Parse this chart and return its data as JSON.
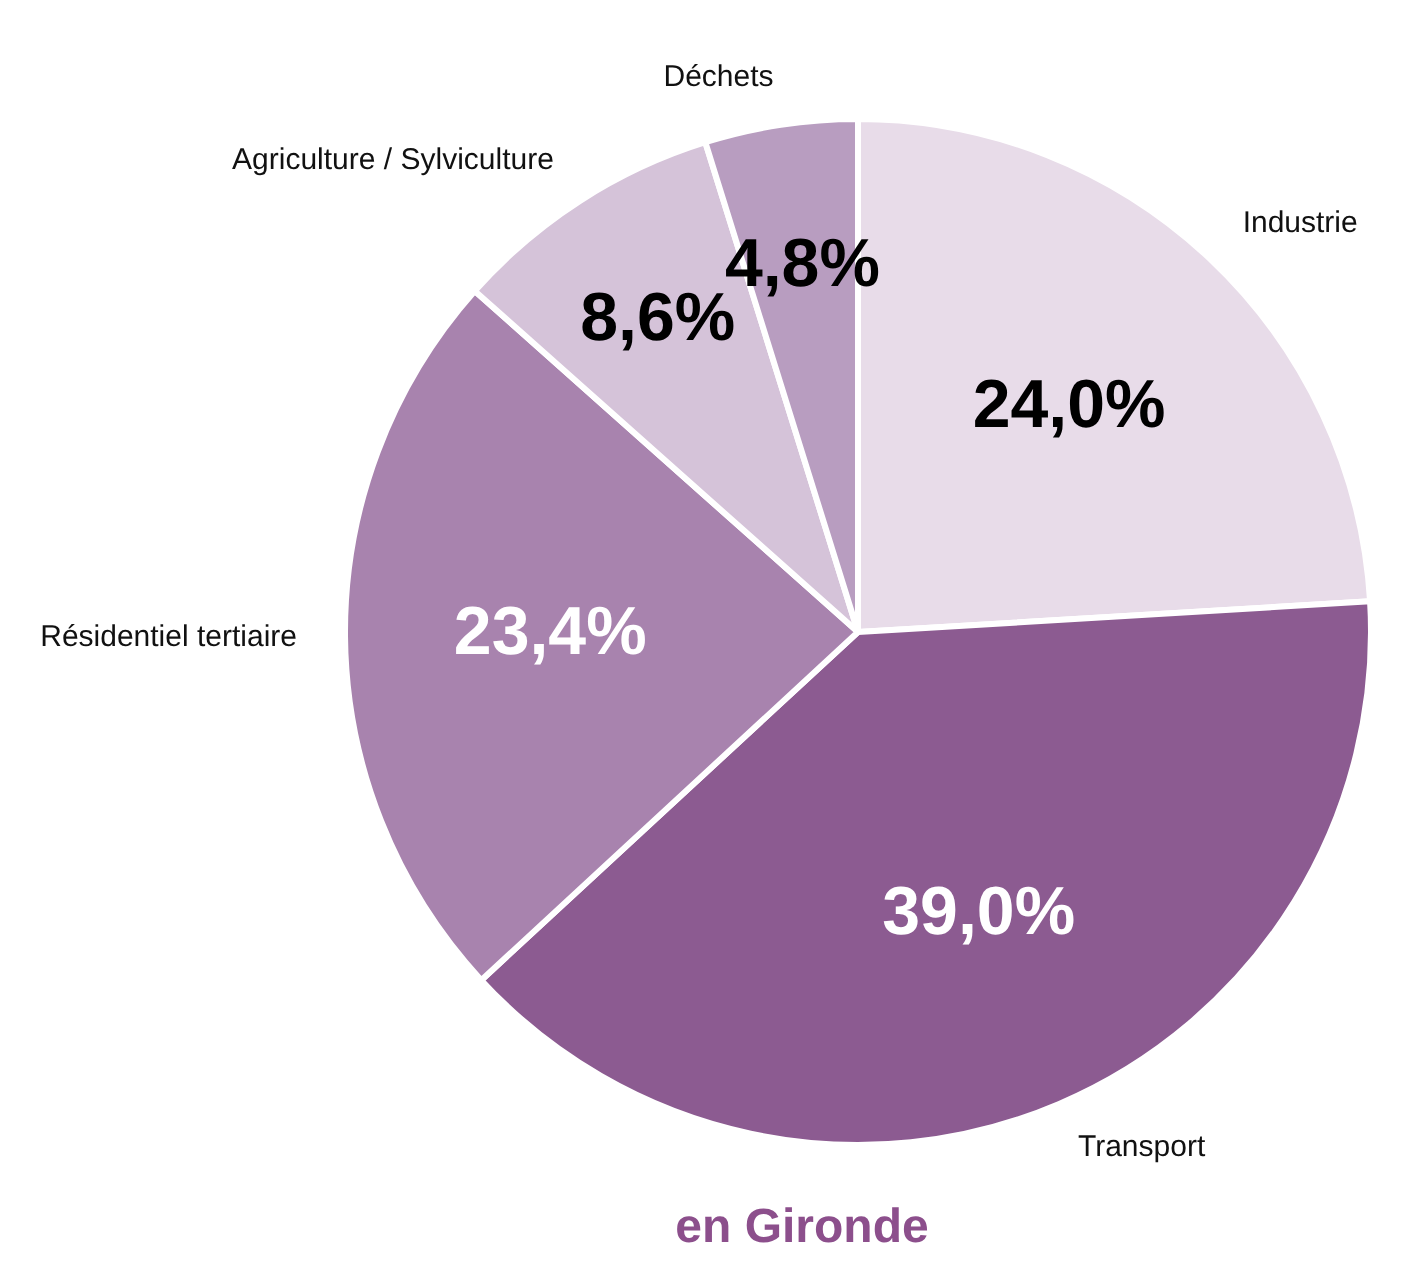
{
  "chart_data": {
    "type": "pie",
    "title": "en Gironde",
    "categories": [
      "Industrie",
      "Transport",
      "Résidentiel tertiaire",
      "Agriculture / Sylviculture",
      "Déchets"
    ],
    "values": [
      24.0,
      39.0,
      23.4,
      8.6,
      4.8
    ],
    "colors": [
      "#e8dce9",
      "#8c5b91",
      "#a883ae",
      "#d5c3d9",
      "#b89dc0"
    ],
    "value_labels": [
      "24,0%",
      "39,0%",
      "23,4%",
      "8,6%",
      "4,8%"
    ],
    "legend": false
  }
}
